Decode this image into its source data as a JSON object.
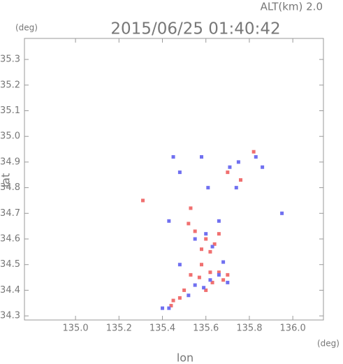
{
  "chart_data": {
    "type": "scatter",
    "title": "2015/06/25 01:40:42",
    "subtitle": "ALT(km) 2.0",
    "x_label": "lon",
    "y_label": "lat",
    "x_unit": "(deg)",
    "y_unit": "(deg)",
    "xlim": [
      134.765,
      136.141
    ],
    "ylim": [
      34.284,
      35.382
    ],
    "xticks": [
      {
        "value": 135.0,
        "label": "135.0"
      },
      135.2,
      135.4,
      135.6,
      135.8,
      {
        "value": 136.0,
        "label": "136.0"
      }
    ],
    "yticks": [
      34.3,
      34.4,
      34.5,
      34.6,
      34.7,
      34.8,
      34.9,
      {
        "value": 35.0,
        "label": "35.0"
      },
      35.1,
      35.2,
      35.3
    ],
    "series": [
      {
        "color": "#f07070",
        "x": [
          135.31,
          135.52,
          135.55,
          135.6,
          135.62,
          135.58,
          135.62,
          135.66,
          135.68,
          135.7,
          135.53,
          135.5,
          135.44,
          135.45,
          135.48,
          135.57,
          135.63,
          135.66,
          135.82,
          135.76,
          135.7,
          135.58,
          135.64,
          135.6,
          135.53
        ],
        "y": [
          34.75,
          34.66,
          34.63,
          34.6,
          34.55,
          34.5,
          34.47,
          34.47,
          34.44,
          34.46,
          34.46,
          34.4,
          34.34,
          34.36,
          34.37,
          34.45,
          34.43,
          34.62,
          34.94,
          34.83,
          34.86,
          34.56,
          34.58,
          34.4,
          34.72
        ]
      },
      {
        "color": "#7070f0",
        "x": [
          135.45,
          135.58,
          135.95,
          135.71,
          135.75,
          135.86,
          135.48,
          135.43,
          135.6,
          135.63,
          135.68,
          135.7,
          135.48,
          135.62,
          135.4,
          135.43,
          135.52,
          135.55,
          135.66,
          135.55,
          135.74,
          135.61,
          135.59,
          135.66,
          135.83
        ],
        "y": [
          34.92,
          34.92,
          34.7,
          34.88,
          34.9,
          34.88,
          34.86,
          34.67,
          34.62,
          34.57,
          34.51,
          34.43,
          34.5,
          34.44,
          34.33,
          34.33,
          34.38,
          34.42,
          34.67,
          34.6,
          34.8,
          34.8,
          34.41,
          34.46,
          34.92
        ]
      }
    ]
  }
}
